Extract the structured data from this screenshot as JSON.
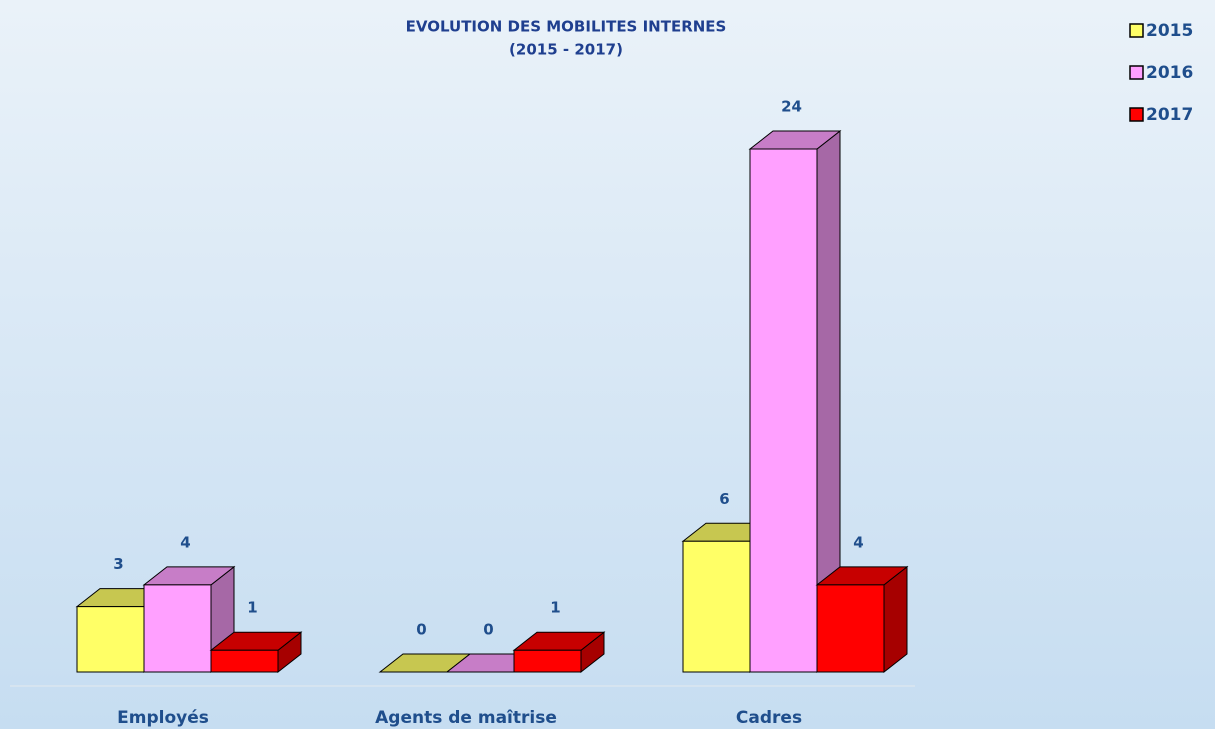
{
  "chart_data": {
    "type": "bar3d",
    "title": "EVOLUTION DES MOBILITES INTERNES",
    "subtitle": "(2015 - 2017)",
    "categories": [
      "Employés",
      "Agents de maîtrise",
      "Cadres"
    ],
    "series": [
      {
        "name": "2015",
        "color": "#ffff66",
        "values": [
          3,
          0,
          6
        ]
      },
      {
        "name": "2016",
        "color": "#ffa0ff",
        "values": [
          4,
          0,
          24
        ]
      },
      {
        "name": "2017",
        "color": "#ff0000",
        "values": [
          1,
          1,
          4
        ]
      }
    ],
    "ylim": [
      0,
      24
    ],
    "legend": "top-right"
  }
}
